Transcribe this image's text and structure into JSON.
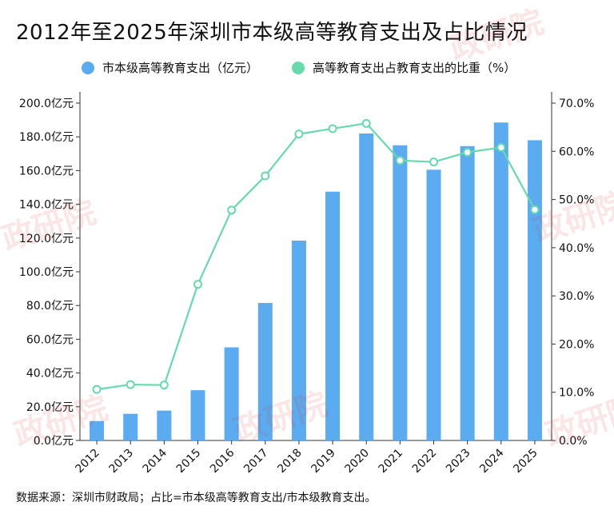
{
  "title": "2012年至2025年深圳市本级高等教育支出及占比情况",
  "source": "数据来源：深圳市财政局；占比=市本级高等教育支出/市本级教育支出。",
  "watermark": "政研院",
  "colors": {
    "bar": "#5aabef",
    "line": "#66d9ad",
    "axis": "#333333",
    "wm": "#dc3c46"
  },
  "chart_data": {
    "type": "bar",
    "title": "2012年至2025年深圳市本级高等教育支出及占比情况",
    "categories": [
      "2012",
      "2013",
      "2014",
      "2015",
      "2016",
      "2017",
      "2018",
      "2019",
      "2020",
      "2021",
      "2022",
      "2023",
      "2024",
      "2025"
    ],
    "series": [
      {
        "name": "市本级高等教育支出（亿元）",
        "type": "bar",
        "axis": "left",
        "values": [
          11.5,
          15.8,
          17.7,
          29.8,
          55.2,
          81.5,
          118.5,
          147.5,
          182.0,
          175.0,
          160.5,
          174.5,
          188.5,
          178.0
        ]
      },
      {
        "name": "高等教育支出占教育支出的比重（%）",
        "type": "line",
        "axis": "right",
        "values": [
          10.6,
          11.6,
          11.5,
          32.4,
          47.8,
          54.9,
          63.6,
          64.7,
          65.8,
          58.1,
          57.8,
          59.8,
          60.8,
          47.9
        ]
      }
    ],
    "left_axis": {
      "ylim": [
        0,
        200
      ],
      "step": 20,
      "tick_labels": [
        "0.0亿元",
        "20.0亿元",
        "40.0亿元",
        "60.0亿元",
        "80.0亿元",
        "100.0亿元",
        "120.0亿元",
        "140.0亿元",
        "160.0亿元",
        "180.0亿元",
        "200.0亿元"
      ]
    },
    "right_axis": {
      "ylim": [
        0,
        70
      ],
      "step": 10,
      "tick_labels": [
        "0.0%",
        "10.0%",
        "20.0%",
        "30.0%",
        "40.0%",
        "50.0%",
        "60.0%",
        "70.0%"
      ]
    },
    "legend_position": "top",
    "grid": false
  }
}
